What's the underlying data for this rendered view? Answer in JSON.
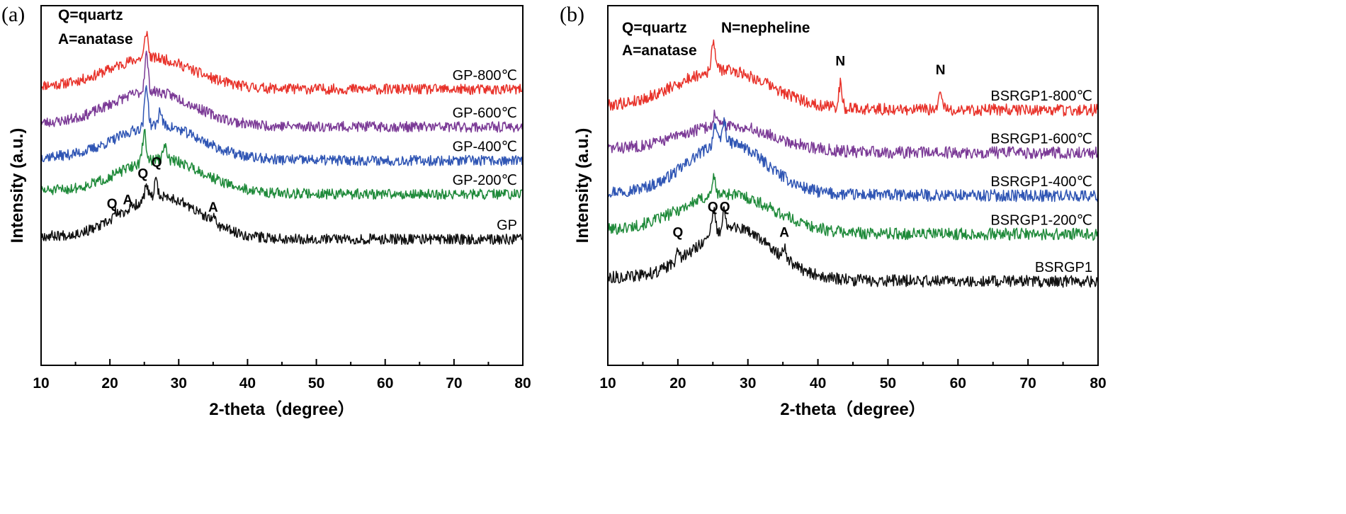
{
  "chart_data": [
    {
      "panel": "(a)",
      "type": "line",
      "xlabel": "2-theta（degree）",
      "ylabel": "Intensity (a.u.)",
      "xlim": [
        10,
        80
      ],
      "xticks": [
        10,
        20,
        30,
        40,
        50,
        60,
        70,
        80
      ],
      "legend_notes": [
        "Q=quartz",
        "A=anatase"
      ],
      "series": [
        {
          "name": "GP-800℃",
          "color": "#e8322a",
          "offset": 4.0,
          "baseline": 0.15,
          "hump_center": 26,
          "hump_width": 6,
          "hump_height": 0.8,
          "tail": 0.1,
          "peaks": [
            [
              25.3,
              0.7
            ]
          ],
          "seed": 11
        },
        {
          "name": "GP-600℃",
          "color": "#7b3a96",
          "offset": 3.0,
          "baseline": 0.15,
          "hump_center": 26,
          "hump_width": 6,
          "hump_height": 0.9,
          "tail": 0.1,
          "peaks": [
            [
              25.3,
              1.0
            ]
          ],
          "seed": 23
        },
        {
          "name": "GP-400℃",
          "color": "#2f55b4",
          "offset": 2.1,
          "baseline": 0.15,
          "hump_center": 27,
          "hump_width": 6,
          "hump_height": 0.9,
          "tail": 0.1,
          "peaks": [
            [
              25.3,
              1.1
            ],
            [
              27.3,
              0.4
            ]
          ],
          "seed": 37
        },
        {
          "name": "GP-200℃",
          "color": "#1f8a3a",
          "offset": 1.2,
          "baseline": 0.15,
          "hump_center": 27.5,
          "hump_width": 6,
          "hump_height": 0.9,
          "tail": 0.1,
          "peaks": [
            [
              25.0,
              0.8
            ],
            [
              28.0,
              0.35
            ]
          ],
          "seed": 51
        },
        {
          "name": "GP",
          "color": "#111111",
          "offset": 0.0,
          "baseline": 0.15,
          "hump_center": 27.5,
          "hump_width": 5.5,
          "hump_height": 1.1,
          "tail": 0.1,
          "peaks": [
            [
              25.3,
              0.35
            ],
            [
              26.7,
              0.4
            ],
            [
              20.8,
              0.15
            ],
            [
              35.1,
              0.15
            ]
          ],
          "seed": 67
        }
      ],
      "annotations": [
        {
          "text": "Q",
          "x": 20.3,
          "y": 1.0
        },
        {
          "text": "A",
          "x": 22.6,
          "y": 1.1
        },
        {
          "text": "Q",
          "x": 24.8,
          "y": 1.8
        },
        {
          "text": "Q",
          "x": 26.8,
          "y": 2.1
        },
        {
          "text": "A",
          "x": 35.0,
          "y": 0.9
        }
      ],
      "ylim": [
        -3.2,
        6.4
      ]
    },
    {
      "panel": "(b)",
      "type": "line",
      "xlabel": "2-theta（degree）",
      "ylabel": "Intensity (a.u.)",
      "xlim": [
        10,
        80
      ],
      "xticks": [
        10,
        20,
        30,
        40,
        50,
        60,
        70,
        80
      ],
      "legend_notes": [
        "Q=quartz",
        "N=nepheline",
        "A=anatase"
      ],
      "series": [
        {
          "name": "BSRGP1-800℃",
          "color": "#e8322a",
          "offset": 4.0,
          "baseline": 0.15,
          "hump_center": 26.5,
          "hump_width": 6.5,
          "hump_height": 0.9,
          "tail": 0.1,
          "peaks": [
            [
              25.1,
              0.7
            ],
            [
              43.2,
              0.55
            ],
            [
              57.5,
              0.4
            ]
          ],
          "seed": 79
        },
        {
          "name": "BSRGP1-600℃",
          "color": "#7b3a96",
          "offset": 3.0,
          "baseline": 0.15,
          "hump_center": 27,
          "hump_width": 6.5,
          "hump_height": 0.6,
          "tail": 0.1,
          "peaks": [
            [
              25.3,
              0.3
            ]
          ],
          "seed": 83
        },
        {
          "name": "BSRGP1-400℃",
          "color": "#2f55b4",
          "offset": 2.0,
          "baseline": 0.15,
          "hump_center": 27,
          "hump_width": 5.5,
          "hump_height": 1.2,
          "tail": 0.1,
          "peaks": [
            [
              25.3,
              0.5
            ],
            [
              26.6,
              0.5
            ]
          ],
          "seed": 97
        },
        {
          "name": "BSRGP1-200℃",
          "color": "#1f8a3a",
          "offset": 1.1,
          "baseline": 0.15,
          "hump_center": 27,
          "hump_width": 6.5,
          "hump_height": 0.9,
          "tail": 0.1,
          "peaks": [
            [
              25.1,
              0.4
            ]
          ],
          "seed": 101
        },
        {
          "name": "BSRGP1",
          "color": "#111111",
          "offset": 0.0,
          "baseline": 0.15,
          "hump_center": 28,
          "hump_width": 5.5,
          "hump_height": 1.2,
          "tail": 0.1,
          "peaks": [
            [
              25.1,
              0.55
            ],
            [
              26.6,
              0.5
            ],
            [
              20.0,
              0.35
            ],
            [
              35.2,
              0.3
            ]
          ],
          "seed": 113
        }
      ],
      "annotations": [
        {
          "text": "Q",
          "x": 20.0,
          "y": 1.2
        },
        {
          "text": "Q",
          "x": 25.0,
          "y": 1.8
        },
        {
          "text": "Q",
          "x": 26.7,
          "y": 1.8
        },
        {
          "text": "A",
          "x": 35.2,
          "y": 1.2
        },
        {
          "text": "N",
          "x": 43.2,
          "y": 5.2
        },
        {
          "text": "N",
          "x": 57.5,
          "y": 5.0
        }
      ],
      "ylim": [
        -1.8,
        6.6
      ]
    }
  ]
}
